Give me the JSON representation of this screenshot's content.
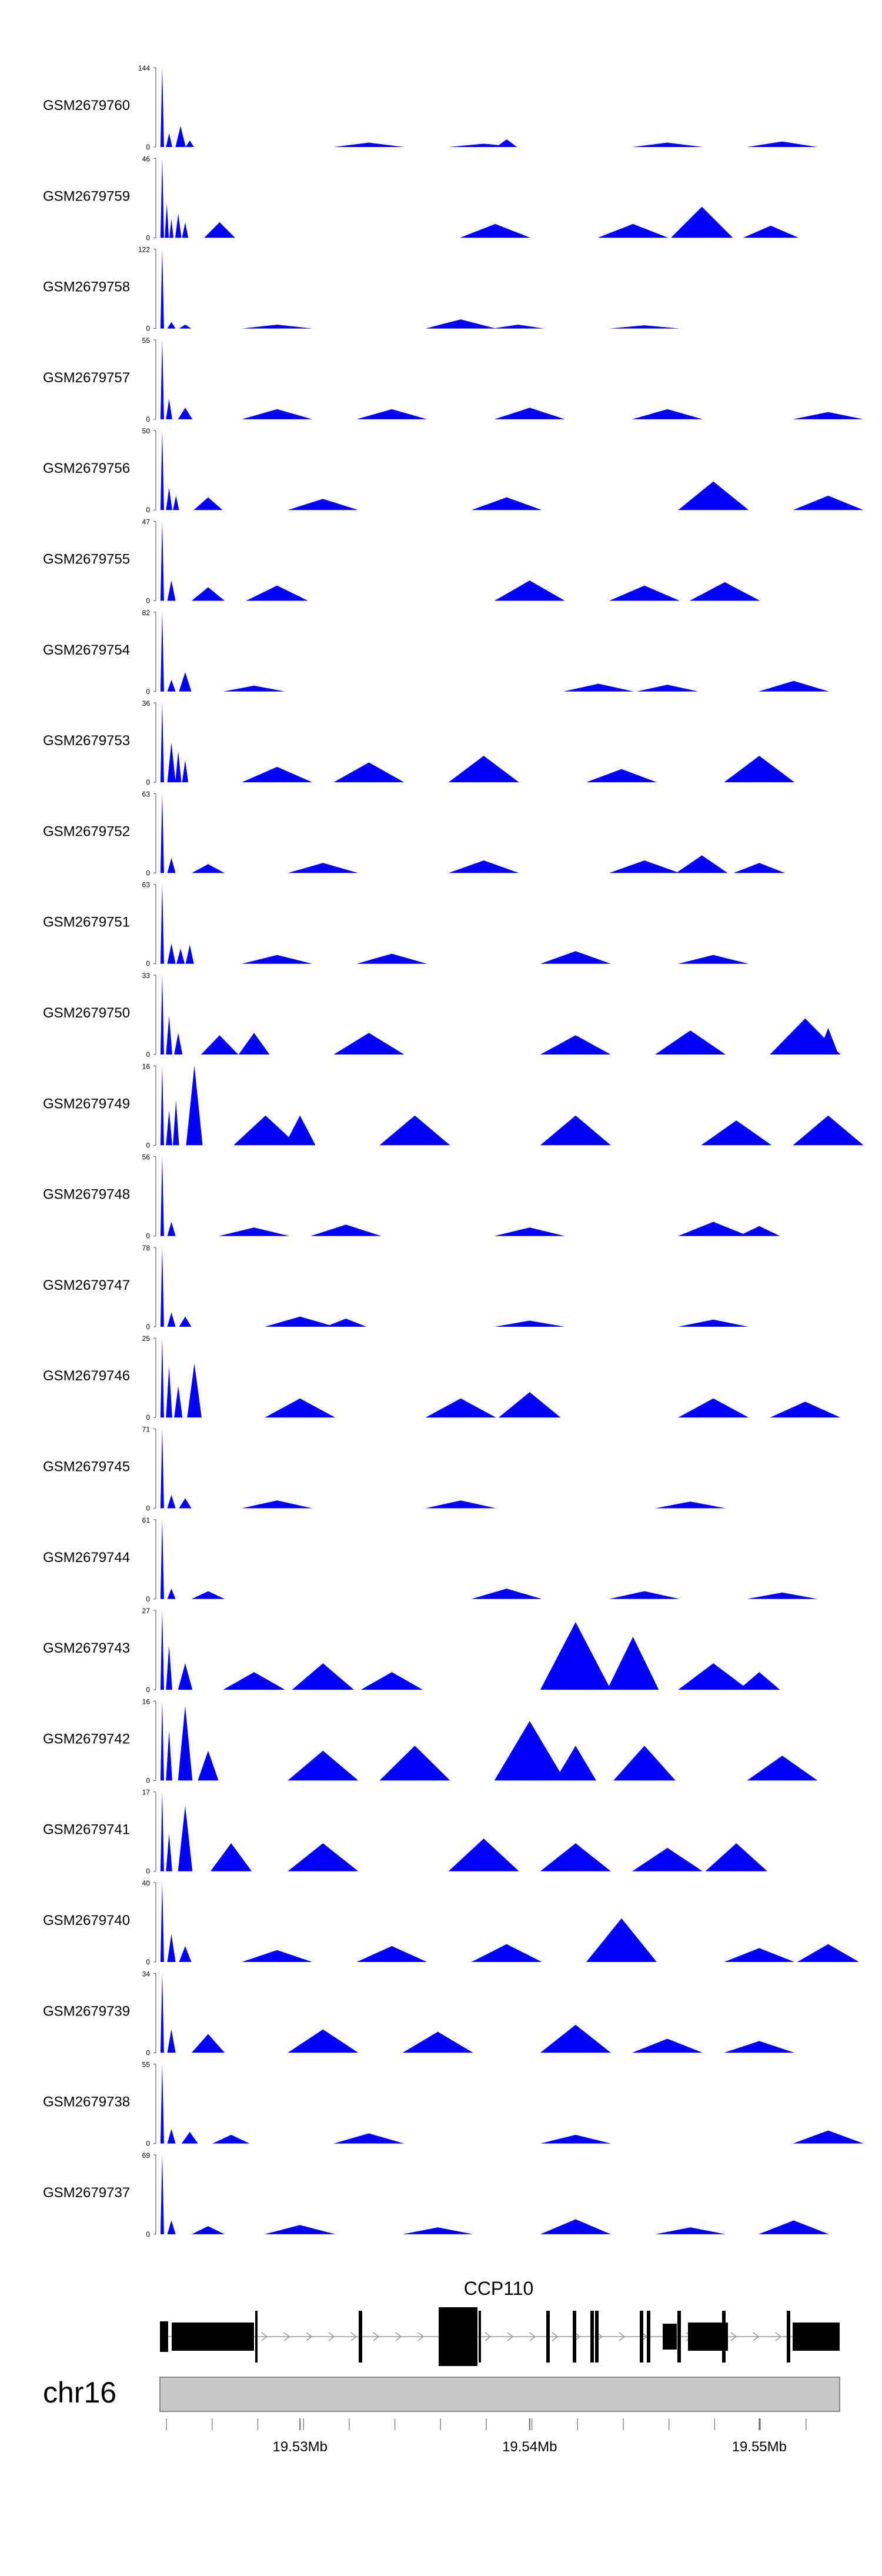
{
  "chart_data": {
    "type": "area",
    "chromosome": "chr16",
    "gene": {
      "name": "CCP110"
    },
    "x_range_mb": [
      19.5239,
      19.5535
    ],
    "x_tick_labels": [
      "19.53Mb",
      "19.54Mb",
      "19.55Mb"
    ],
    "x_tick_values": [
      19.53,
      19.54,
      19.55
    ],
    "fill_color": "#0000ff",
    "tracks": [
      {
        "name": "GSM2679760",
        "ymax": 144,
        "peaks": [
          [
            19.524,
            144
          ],
          [
            19.5243,
            25
          ],
          [
            19.5248,
            38
          ],
          [
            19.5252,
            12
          ],
          [
            19.533,
            8
          ],
          [
            19.538,
            6
          ],
          [
            19.539,
            14
          ],
          [
            19.546,
            8
          ],
          [
            19.551,
            10
          ]
        ]
      },
      {
        "name": "GSM2679759",
        "ymax": 46,
        "peaks": [
          [
            19.524,
            46
          ],
          [
            19.5242,
            20
          ],
          [
            19.5244,
            11
          ],
          [
            19.5247,
            14
          ],
          [
            19.525,
            9
          ],
          [
            19.5265,
            9
          ],
          [
            19.5385,
            8
          ],
          [
            19.5445,
            8
          ],
          [
            19.5475,
            18
          ],
          [
            19.5478,
            10
          ],
          [
            19.5505,
            7
          ]
        ]
      },
      {
        "name": "GSM2679758",
        "ymax": 122,
        "peaks": [
          [
            19.524,
            122
          ],
          [
            19.5244,
            10
          ],
          [
            19.525,
            6
          ],
          [
            19.529,
            6
          ],
          [
            19.537,
            14
          ],
          [
            19.5395,
            6
          ],
          [
            19.545,
            5
          ]
        ]
      },
      {
        "name": "GSM2679757",
        "ymax": 55,
        "peaks": [
          [
            19.524,
            55
          ],
          [
            19.5243,
            14
          ],
          [
            19.525,
            8
          ],
          [
            19.529,
            7
          ],
          [
            19.534,
            7
          ],
          [
            19.54,
            8
          ],
          [
            19.546,
            7
          ],
          [
            19.553,
            5
          ]
        ]
      },
      {
        "name": "GSM2679756",
        "ymax": 50,
        "peaks": [
          [
            19.524,
            50
          ],
          [
            19.5243,
            14
          ],
          [
            19.5246,
            9
          ],
          [
            19.526,
            8
          ],
          [
            19.531,
            7
          ],
          [
            19.539,
            8
          ],
          [
            19.548,
            18
          ],
          [
            19.553,
            9
          ]
        ]
      },
      {
        "name": "GSM2679755",
        "ymax": 47,
        "peaks": [
          [
            19.524,
            47
          ],
          [
            19.5244,
            12
          ],
          [
            19.526,
            8
          ],
          [
            19.529,
            9
          ],
          [
            19.54,
            12
          ],
          [
            19.545,
            9
          ],
          [
            19.5485,
            11
          ]
        ]
      },
      {
        "name": "GSM2679754",
        "ymax": 82,
        "peaks": [
          [
            19.524,
            82
          ],
          [
            19.5244,
            12
          ],
          [
            19.525,
            20
          ],
          [
            19.528,
            6
          ],
          [
            19.543,
            8
          ],
          [
            19.546,
            7
          ],
          [
            19.5515,
            11
          ]
        ]
      },
      {
        "name": "GSM2679753",
        "ymax": 36,
        "peaks": [
          [
            19.524,
            36
          ],
          [
            19.5244,
            18
          ],
          [
            19.5247,
            14
          ],
          [
            19.525,
            10
          ],
          [
            19.529,
            7
          ],
          [
            19.533,
            9
          ],
          [
            19.538,
            12
          ],
          [
            19.544,
            6
          ],
          [
            19.55,
            12
          ]
        ]
      },
      {
        "name": "GSM2679752",
        "ymax": 63,
        "peaks": [
          [
            19.524,
            63
          ],
          [
            19.5244,
            12
          ],
          [
            19.526,
            7
          ],
          [
            19.531,
            8
          ],
          [
            19.538,
            10
          ],
          [
            19.545,
            10
          ],
          [
            19.5475,
            14
          ],
          [
            19.55,
            8
          ]
        ]
      },
      {
        "name": "GSM2679751",
        "ymax": 63,
        "peaks": [
          [
            19.524,
            63
          ],
          [
            19.5244,
            16
          ],
          [
            19.5248,
            12
          ],
          [
            19.5252,
            15
          ],
          [
            19.529,
            7
          ],
          [
            19.534,
            8
          ],
          [
            19.542,
            10
          ],
          [
            19.548,
            7
          ]
        ]
      },
      {
        "name": "GSM2679750",
        "ymax": 33,
        "peaks": [
          [
            19.524,
            33
          ],
          [
            19.5243,
            16
          ],
          [
            19.5247,
            9
          ],
          [
            19.5265,
            8
          ],
          [
            19.528,
            9
          ],
          [
            19.533,
            9
          ],
          [
            19.542,
            8
          ],
          [
            19.547,
            10
          ],
          [
            19.552,
            15
          ],
          [
            19.553,
            11
          ]
        ]
      },
      {
        "name": "GSM2679749",
        "ymax": 16,
        "peaks": [
          [
            19.524,
            16
          ],
          [
            19.5243,
            7
          ],
          [
            19.5246,
            9
          ],
          [
            19.5254,
            16
          ],
          [
            19.5285,
            6
          ],
          [
            19.53,
            6
          ],
          [
            19.535,
            6
          ],
          [
            19.542,
            6
          ],
          [
            19.549,
            5
          ],
          [
            19.553,
            6
          ]
        ]
      },
      {
        "name": "GSM2679748",
        "ymax": 56,
        "peaks": [
          [
            19.524,
            56
          ],
          [
            19.5244,
            10
          ],
          [
            19.528,
            6
          ],
          [
            19.532,
            8
          ],
          [
            19.54,
            6
          ],
          [
            19.548,
            10
          ],
          [
            19.55,
            7
          ]
        ]
      },
      {
        "name": "GSM2679747",
        "ymax": 78,
        "peaks": [
          [
            19.524,
            78
          ],
          [
            19.5244,
            14
          ],
          [
            19.525,
            10
          ],
          [
            19.53,
            10
          ],
          [
            19.532,
            8
          ],
          [
            19.54,
            6
          ],
          [
            19.548,
            7
          ]
        ]
      },
      {
        "name": "GSM2679746",
        "ymax": 25,
        "peaks": [
          [
            19.524,
            25
          ],
          [
            19.5243,
            16
          ],
          [
            19.5247,
            10
          ],
          [
            19.5254,
            17
          ],
          [
            19.53,
            6
          ],
          [
            19.537,
            6
          ],
          [
            19.54,
            8
          ],
          [
            19.548,
            6
          ],
          [
            19.552,
            5
          ]
        ]
      },
      {
        "name": "GSM2679745",
        "ymax": 71,
        "peaks": [
          [
            19.524,
            71
          ],
          [
            19.5244,
            12
          ],
          [
            19.525,
            9
          ],
          [
            19.529,
            7
          ],
          [
            19.537,
            7
          ],
          [
            19.547,
            6
          ]
        ]
      },
      {
        "name": "GSM2679744",
        "ymax": 61,
        "peaks": [
          [
            19.524,
            61
          ],
          [
            19.5244,
            8
          ],
          [
            19.526,
            6
          ],
          [
            19.539,
            8
          ],
          [
            19.545,
            6
          ],
          [
            19.551,
            5
          ]
        ]
      },
      {
        "name": "GSM2679743",
        "ymax": 27,
        "peaks": [
          [
            19.524,
            27
          ],
          [
            19.5243,
            15
          ],
          [
            19.525,
            9
          ],
          [
            19.528,
            6
          ],
          [
            19.531,
            9
          ],
          [
            19.534,
            6
          ],
          [
            19.542,
            23
          ],
          [
            19.5445,
            18
          ],
          [
            19.548,
            9
          ],
          [
            19.55,
            6
          ]
        ]
      },
      {
        "name": "GSM2679742",
        "ymax": 16,
        "peaks": [
          [
            19.524,
            16
          ],
          [
            19.5243,
            10
          ],
          [
            19.525,
            15
          ],
          [
            19.526,
            6
          ],
          [
            19.531,
            6
          ],
          [
            19.535,
            7
          ],
          [
            19.54,
            12
          ],
          [
            19.542,
            7
          ],
          [
            19.545,
            7
          ],
          [
            19.551,
            5
          ]
        ]
      },
      {
        "name": "GSM2679741",
        "ymax": 17,
        "peaks": [
          [
            19.524,
            17
          ],
          [
            19.5243,
            8
          ],
          [
            19.525,
            14
          ],
          [
            19.527,
            6
          ],
          [
            19.531,
            6
          ],
          [
            19.538,
            7
          ],
          [
            19.542,
            6
          ],
          [
            19.546,
            5
          ],
          [
            19.549,
            6
          ]
        ]
      },
      {
        "name": "GSM2679740",
        "ymax": 40,
        "peaks": [
          [
            19.524,
            40
          ],
          [
            19.5244,
            14
          ],
          [
            19.525,
            8
          ],
          [
            19.529,
            6
          ],
          [
            19.534,
            8
          ],
          [
            19.539,
            9
          ],
          [
            19.544,
            22
          ],
          [
            19.55,
            7
          ],
          [
            19.553,
            9
          ]
        ]
      },
      {
        "name": "GSM2679739",
        "ymax": 34,
        "peaks": [
          [
            19.524,
            34
          ],
          [
            19.5244,
            10
          ],
          [
            19.526,
            8
          ],
          [
            19.531,
            10
          ],
          [
            19.536,
            9
          ],
          [
            19.542,
            12
          ],
          [
            19.546,
            6
          ],
          [
            19.55,
            5
          ]
        ]
      },
      {
        "name": "GSM2679738",
        "ymax": 55,
        "peaks": [
          [
            19.524,
            55
          ],
          [
            19.5244,
            10
          ],
          [
            19.5252,
            8
          ],
          [
            19.527,
            6
          ],
          [
            19.533,
            7
          ],
          [
            19.542,
            6
          ],
          [
            19.553,
            9
          ]
        ]
      },
      {
        "name": "GSM2679737",
        "ymax": 69,
        "peaks": [
          [
            19.524,
            69
          ],
          [
            19.5244,
            12
          ],
          [
            19.526,
            7
          ],
          [
            19.53,
            8
          ],
          [
            19.536,
            6
          ],
          [
            19.542,
            13
          ],
          [
            19.547,
            6
          ],
          [
            19.5515,
            12
          ]
        ]
      }
    ]
  }
}
